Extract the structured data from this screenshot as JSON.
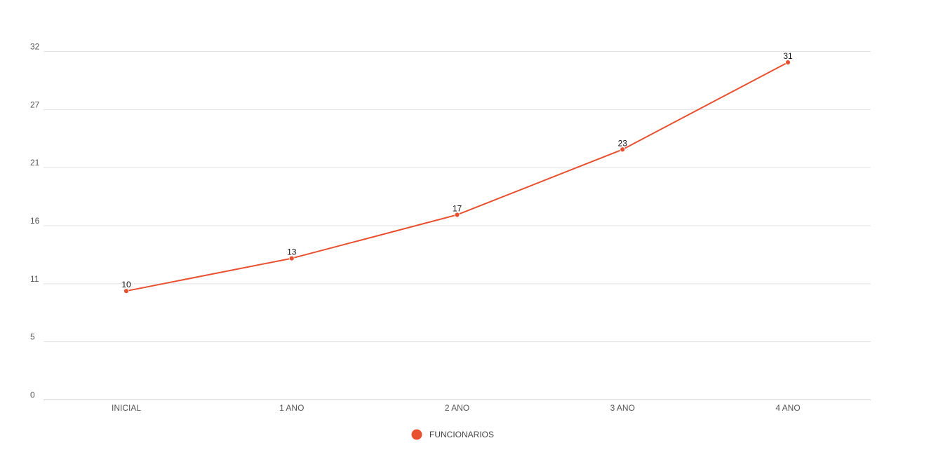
{
  "chart_data": {
    "type": "line",
    "categories": [
      "INICIAL",
      "1 ANO",
      "2 ANO",
      "3 ANO",
      "4 ANO"
    ],
    "y_ticks": [
      "0",
      "5",
      "11",
      "16",
      "21",
      "27",
      "32"
    ],
    "ylim": [
      0,
      32
    ],
    "grid": true,
    "legend_placement": "bottom",
    "series": [
      {
        "name": "FUNCIONARIOS",
        "values": [
          10,
          13,
          17,
          23,
          31
        ],
        "labels": [
          "10",
          "13",
          "17",
          "23",
          "31"
        ],
        "color": "#e8502f"
      }
    ]
  }
}
